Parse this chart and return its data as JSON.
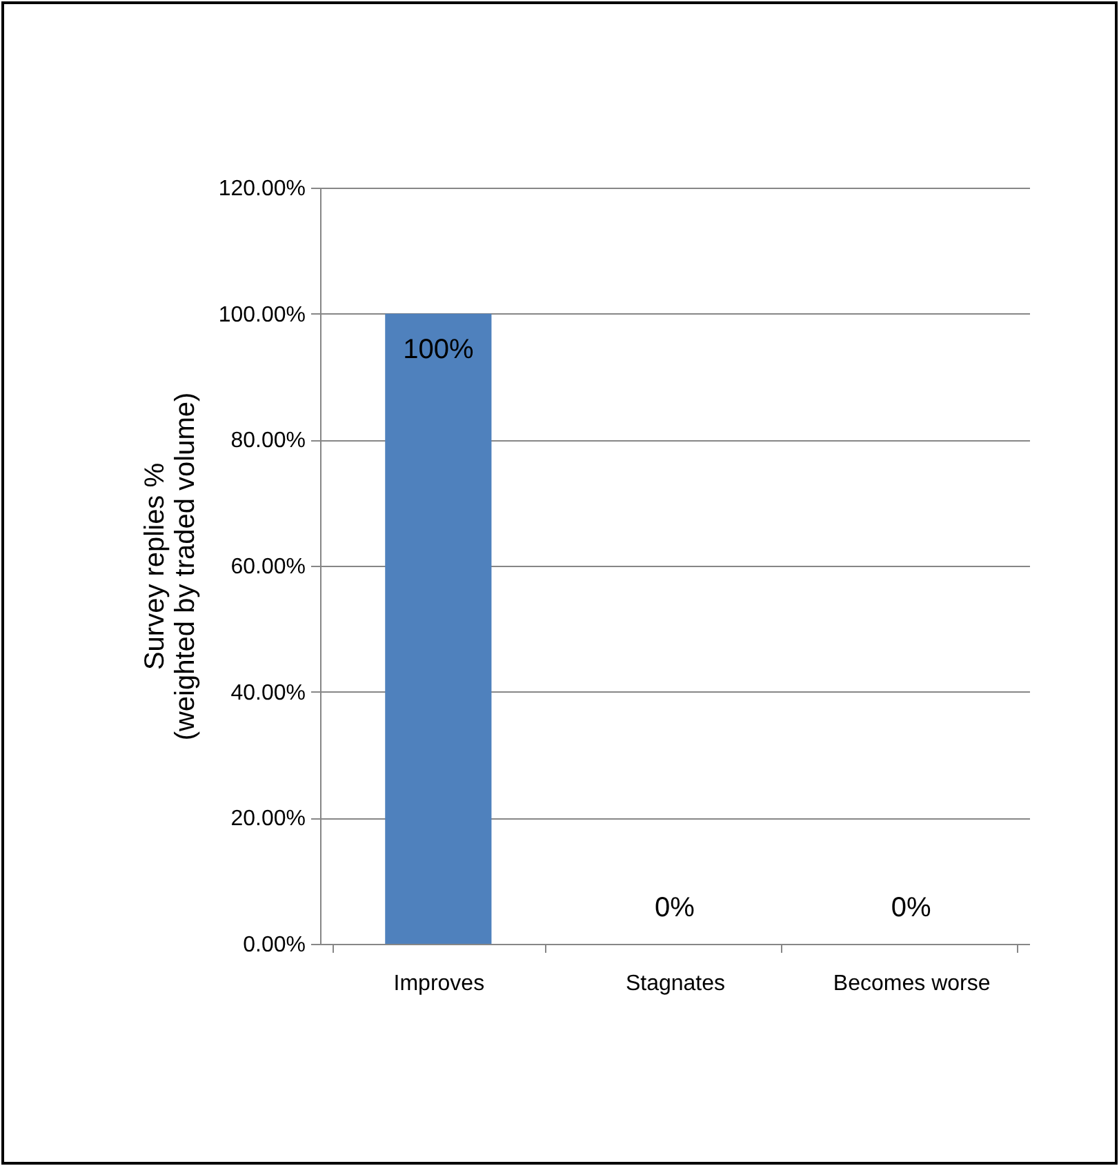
{
  "chart_data": {
    "type": "bar",
    "ylabel": "Survey replies %\n(weighted by traded volume)",
    "categories": [
      "Improves",
      "Stagnates",
      "Becomes worse"
    ],
    "values": [
      100,
      0,
      0
    ],
    "value_labels": [
      "100%",
      "0%",
      "0%"
    ],
    "color": "#4f81bd",
    "ylim": [
      0,
      120
    ],
    "yticks": [
      {
        "value": 0,
        "label": "0.00%"
      },
      {
        "value": 20,
        "label": "20.00%"
      },
      {
        "value": 40,
        "label": "40.00%"
      },
      {
        "value": 60,
        "label": "60.00%"
      },
      {
        "value": 80,
        "label": "80.00%"
      },
      {
        "value": 100,
        "label": "100.00%"
      },
      {
        "value": 120,
        "label": "120.00%"
      }
    ],
    "grid": "y"
  }
}
